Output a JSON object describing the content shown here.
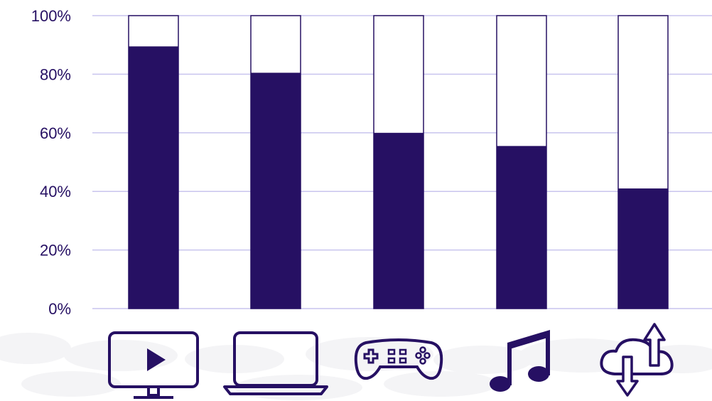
{
  "chart_data": {
    "type": "bar",
    "stacked_to_100": true,
    "categories": [
      "",
      "",
      "",
      "",
      ""
    ],
    "category_icons": [
      "tv-play-icon",
      "laptop-icon",
      "gamepad-icon",
      "music-note-icon",
      "cloud-upload-download-icon"
    ],
    "series": [
      {
        "values": [
          89.5,
          80.5,
          60,
          55.5,
          41
        ]
      }
    ],
    "ylim": [
      0,
      100
    ],
    "yticks": [
      "0%",
      "20%",
      "40%",
      "60%",
      "80%",
      "100%"
    ],
    "grid": true,
    "legend": "none",
    "title": "",
    "xlabel": "",
    "ylabel": ""
  },
  "colors": {
    "bar_fill": "#261063",
    "bar_outline": "#261063",
    "remainder_fill": "#ffffff",
    "gridline": "#c9c4ee",
    "tick_text": "#261063",
    "icon": "#261063",
    "background_blob": "#f4f4f6"
  }
}
